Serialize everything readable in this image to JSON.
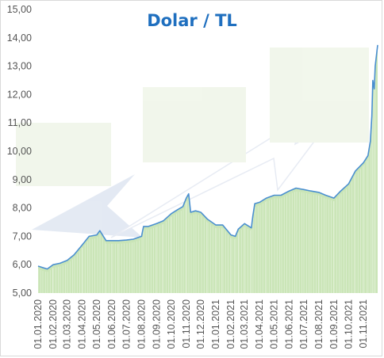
{
  "chart_data": {
    "type": "area",
    "title": "Dolar / TL",
    "xlabel": "",
    "ylabel": "",
    "ylim": [
      5.0,
      15.0
    ],
    "yticks": [
      "5,00",
      "6,00",
      "7,00",
      "8,00",
      "9,00",
      "10,00",
      "11,00",
      "12,00",
      "13,00",
      "14,00",
      "15,00"
    ],
    "xticks": [
      "01.01.2020",
      "01.02.2020",
      "01.03.2020",
      "01.04.2020",
      "01.05.2020",
      "01.06.2020",
      "01.07.2020",
      "01.08.2020",
      "01.09.2020",
      "01.10.2020",
      "01.11.2020",
      "01.12.2020",
      "01.01.2021",
      "01.02.2021",
      "01.03.2021",
      "01.04.2021",
      "01.05.2021",
      "01.06.2021",
      "01.07.2021",
      "01.08.2021",
      "01.09.2021",
      "01.10.2021",
      "01.11.2021"
    ],
    "grid": false,
    "colors": {
      "line": "#4a8fd0",
      "area": "#c5e3b1",
      "title": "#1f6fbf",
      "watermark": "#c8d2e4"
    },
    "series": [
      {
        "x": [
          "2020-01-01",
          "2020-01-10",
          "2020-01-20",
          "2020-02-01",
          "2020-02-15",
          "2020-03-01",
          "2020-03-15",
          "2020-04-01",
          "2020-04-15",
          "2020-05-01",
          "2020-05-07",
          "2020-05-20",
          "2020-06-01",
          "2020-06-15",
          "2020-07-01",
          "2020-07-15",
          "2020-08-01",
          "2020-08-05",
          "2020-08-15",
          "2020-09-01",
          "2020-09-15",
          "2020-10-01",
          "2020-10-15",
          "2020-10-25",
          "2020-11-01",
          "2020-11-06",
          "2020-11-10",
          "2020-11-20",
          "2020-12-01",
          "2020-12-15",
          "2021-01-01",
          "2021-01-15",
          "2021-02-01",
          "2021-02-10",
          "2021-02-16",
          "2021-03-01",
          "2021-03-15",
          "2021-03-18",
          "2021-03-22",
          "2021-04-01",
          "2021-04-15",
          "2021-05-01",
          "2021-05-15",
          "2021-06-01",
          "2021-06-15",
          "2021-07-01",
          "2021-07-15",
          "2021-08-01",
          "2021-08-15",
          "2021-09-01",
          "2021-09-15",
          "2021-10-01",
          "2021-10-15",
          "2021-11-01",
          "2021-11-10",
          "2021-11-15",
          "2021-11-18",
          "2021-11-20",
          "2021-11-23",
          "2021-11-25",
          "2021-11-30"
        ],
        "y": [
          5.95,
          5.9,
          5.85,
          6.0,
          6.05,
          6.15,
          6.35,
          6.7,
          7.0,
          7.05,
          7.2,
          6.85,
          6.85,
          6.85,
          6.87,
          6.9,
          7.0,
          7.35,
          7.35,
          7.45,
          7.55,
          7.8,
          7.95,
          8.05,
          8.35,
          8.5,
          7.85,
          7.9,
          7.85,
          7.6,
          7.4,
          7.4,
          7.05,
          7.0,
          7.25,
          7.45,
          7.3,
          7.7,
          8.15,
          8.2,
          8.35,
          8.45,
          8.45,
          8.6,
          8.7,
          8.65,
          8.6,
          8.55,
          8.45,
          8.35,
          8.6,
          8.85,
          9.3,
          9.6,
          9.85,
          10.35,
          11.25,
          12.5,
          12.2,
          13.0,
          13.75
        ]
      }
    ]
  }
}
